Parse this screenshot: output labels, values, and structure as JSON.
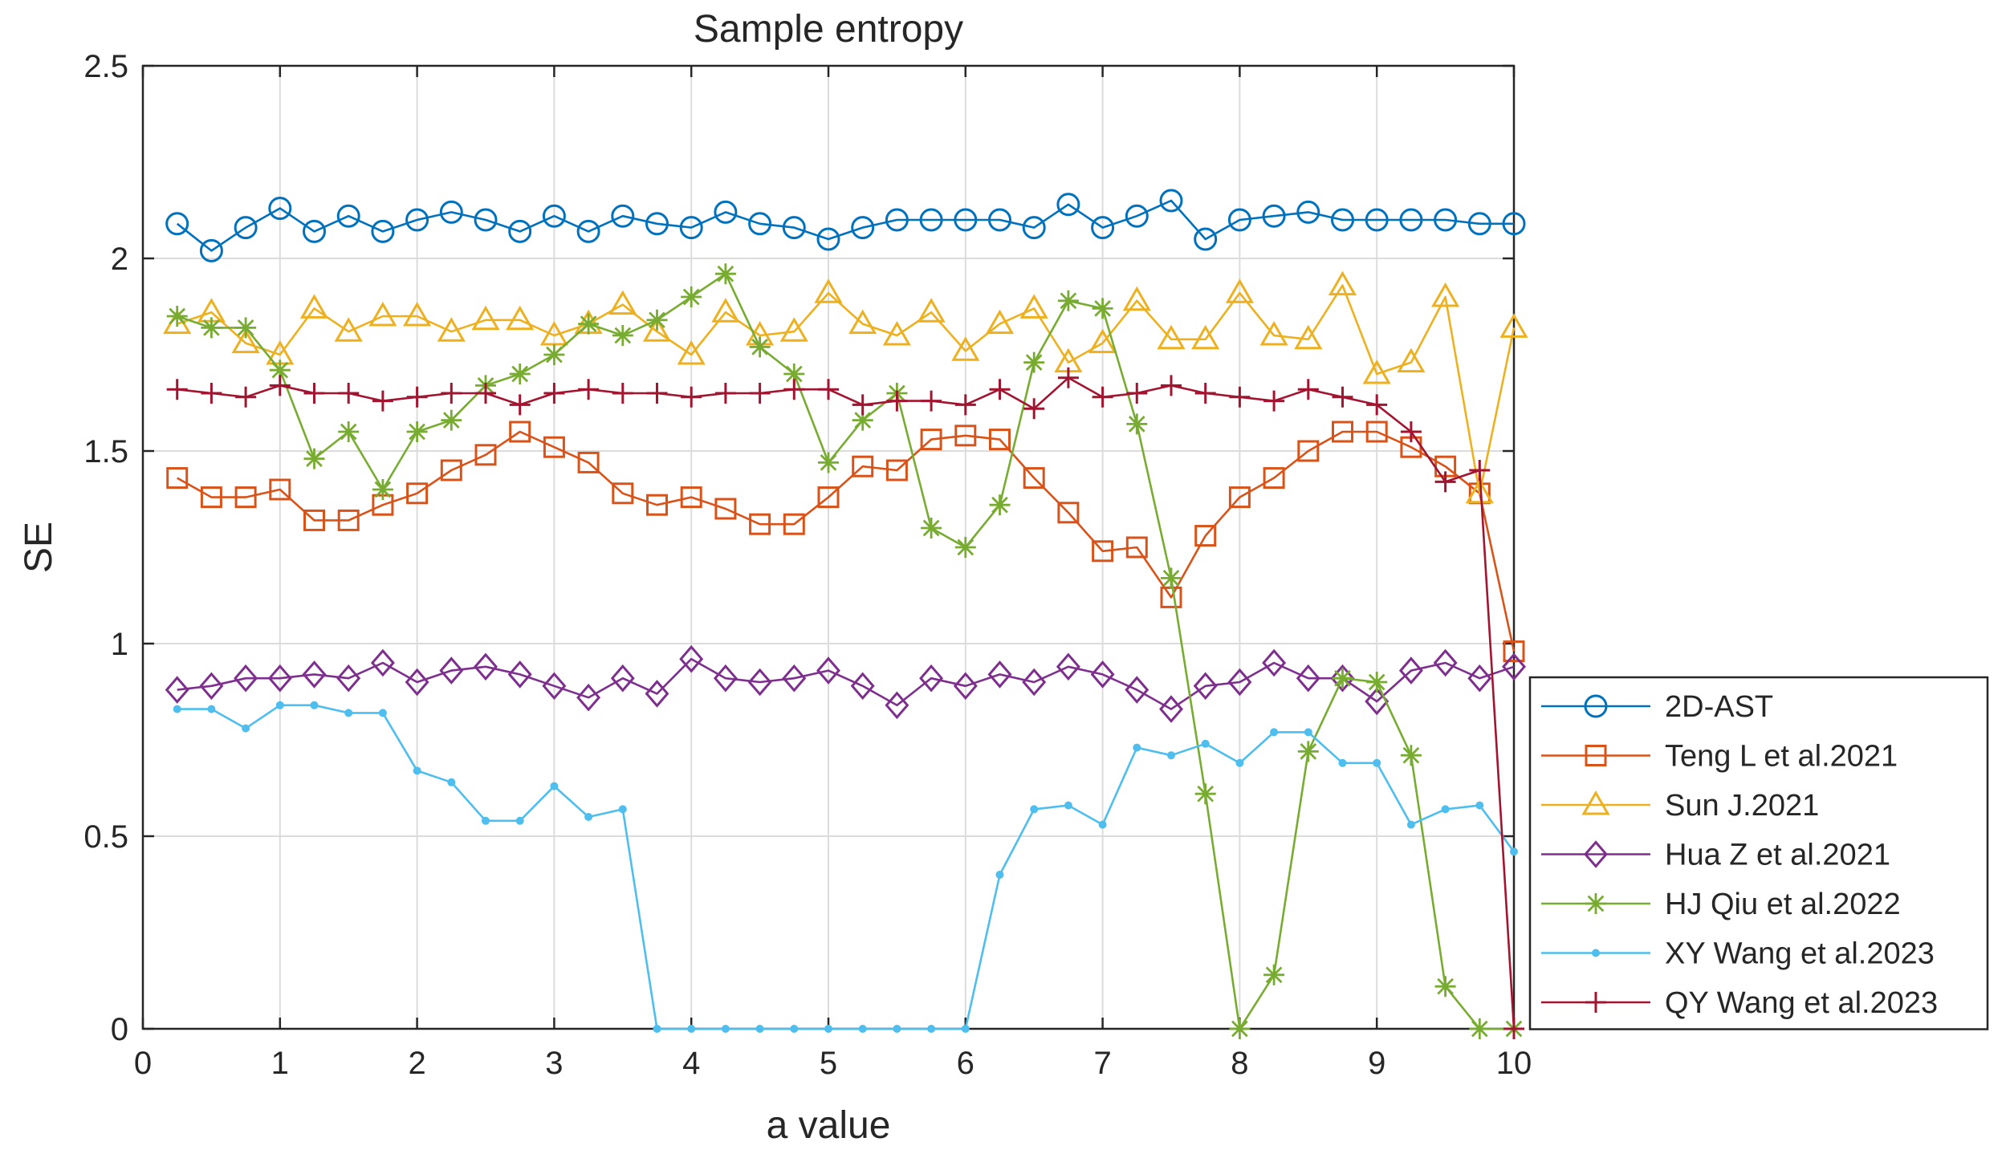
{
  "chart_data": {
    "type": "line",
    "title": "Sample entropy",
    "xlabel": "a value",
    "ylabel": "SE",
    "xlim": [
      0,
      10
    ],
    "ylim": [
      0,
      2.5
    ],
    "xticks": [
      0,
      1,
      2,
      3,
      4,
      5,
      6,
      7,
      8,
      9,
      10
    ],
    "xtick_labels": [
      "0",
      "1",
      "2",
      "3",
      "4",
      "5",
      "6",
      "7",
      "8",
      "9",
      "10"
    ],
    "yticks": [
      0,
      0.5,
      1,
      1.5,
      2,
      2.5
    ],
    "ytick_labels": [
      "0",
      "0.5",
      "1",
      "1.5",
      "2",
      "2.5"
    ],
    "grid": true,
    "legend_position": "bottom-right-outside",
    "x": [
      0.25,
      0.5,
      0.75,
      1,
      1.25,
      1.5,
      1.75,
      2,
      2.25,
      2.5,
      2.75,
      3,
      3.25,
      3.5,
      3.75,
      4,
      4.25,
      4.5,
      4.75,
      5,
      5.25,
      5.5,
      5.75,
      6,
      6.25,
      6.5,
      6.75,
      7,
      7.25,
      7.5,
      7.75,
      8,
      8.25,
      8.5,
      8.75,
      9,
      9.25,
      9.5,
      9.75,
      10
    ],
    "series": [
      {
        "name": "2D-AST",
        "color": "#0072BD",
        "marker": "circle",
        "values": [
          2.09,
          2.02,
          2.08,
          2.13,
          2.07,
          2.11,
          2.07,
          2.1,
          2.12,
          2.1,
          2.07,
          2.11,
          2.07,
          2.11,
          2.09,
          2.08,
          2.12,
          2.09,
          2.08,
          2.05,
          2.08,
          2.1,
          2.1,
          2.1,
          2.1,
          2.08,
          2.14,
          2.08,
          2.11,
          2.15,
          2.05,
          2.1,
          2.11,
          2.12,
          2.1,
          2.1,
          2.1,
          2.1,
          2.09,
          2.09
        ]
      },
      {
        "name": "Teng L et al.2021",
        "color": "#D95319",
        "marker": "square",
        "values": [
          1.43,
          1.38,
          1.38,
          1.4,
          1.32,
          1.32,
          1.36,
          1.39,
          1.45,
          1.49,
          1.55,
          1.51,
          1.47,
          1.39,
          1.36,
          1.38,
          1.35,
          1.31,
          1.31,
          1.38,
          1.46,
          1.45,
          1.53,
          1.54,
          1.53,
          1.43,
          1.34,
          1.24,
          1.25,
          1.12,
          1.28,
          1.38,
          1.43,
          1.5,
          1.55,
          1.55,
          1.51,
          1.46,
          1.39,
          0.98
        ]
      },
      {
        "name": "Sun J.2021",
        "color": "#EDB120",
        "marker": "triangle",
        "values": [
          1.83,
          1.86,
          1.78,
          1.75,
          1.87,
          1.81,
          1.85,
          1.85,
          1.81,
          1.84,
          1.84,
          1.8,
          1.83,
          1.88,
          1.81,
          1.75,
          1.86,
          1.8,
          1.81,
          1.91,
          1.83,
          1.8,
          1.86,
          1.76,
          1.83,
          1.87,
          1.73,
          1.78,
          1.89,
          1.79,
          1.79,
          1.91,
          1.8,
          1.79,
          1.93,
          1.7,
          1.73,
          1.9,
          1.39,
          1.82
        ]
      },
      {
        "name": "Hua Z et al.2021",
        "color": "#7E2F8E",
        "marker": "diamond",
        "values": [
          0.88,
          0.89,
          0.91,
          0.91,
          0.92,
          0.91,
          0.95,
          0.9,
          0.93,
          0.94,
          0.92,
          0.89,
          0.86,
          0.91,
          0.87,
          0.96,
          0.91,
          0.9,
          0.91,
          0.93,
          0.89,
          0.84,
          0.91,
          0.89,
          0.92,
          0.9,
          0.94,
          0.92,
          0.88,
          0.83,
          0.89,
          0.9,
          0.95,
          0.91,
          0.91,
          0.85,
          0.93,
          0.95,
          0.91,
          0.94
        ]
      },
      {
        "name": "HJ Qiu et al.2022",
        "color": "#77AC30",
        "marker": "asterisk",
        "values": [
          1.85,
          1.82,
          1.82,
          1.71,
          1.48,
          1.55,
          1.4,
          1.55,
          1.58,
          1.67,
          1.7,
          1.75,
          1.83,
          1.8,
          1.84,
          1.9,
          1.96,
          1.77,
          1.7,
          1.47,
          1.58,
          1.65,
          1.3,
          1.25,
          1.36,
          1.73,
          1.89,
          1.87,
          1.57,
          1.17,
          0.61,
          0.0,
          0.14,
          0.72,
          0.91,
          0.9,
          0.71,
          0.11,
          0.0,
          0.0
        ]
      },
      {
        "name": "XY Wang et al.2023",
        "color": "#4DBEEE",
        "marker": "dot",
        "values": [
          0.83,
          0.83,
          0.78,
          0.84,
          0.84,
          0.82,
          0.82,
          0.67,
          0.64,
          0.54,
          0.54,
          0.63,
          0.55,
          0.57,
          0.0,
          0.0,
          0.0,
          0.0,
          0.0,
          0.0,
          0.0,
          0.0,
          0.0,
          0.0,
          0.4,
          0.57,
          0.58,
          0.53,
          0.73,
          0.71,
          0.74,
          0.69,
          0.77,
          0.77,
          0.69,
          0.69,
          0.53,
          0.57,
          0.58,
          0.46
        ]
      },
      {
        "name": "QY Wang et al.2023",
        "color": "#A2142F",
        "marker": "plus",
        "values": [
          1.66,
          1.65,
          1.64,
          1.67,
          1.65,
          1.65,
          1.63,
          1.64,
          1.65,
          1.65,
          1.62,
          1.65,
          1.66,
          1.65,
          1.65,
          1.64,
          1.65,
          1.65,
          1.66,
          1.66,
          1.62,
          1.63,
          1.63,
          1.62,
          1.66,
          1.61,
          1.69,
          1.64,
          1.65,
          1.67,
          1.65,
          1.64,
          1.63,
          1.66,
          1.64,
          1.62,
          1.55,
          1.42,
          1.45,
          0.0
        ]
      }
    ]
  }
}
